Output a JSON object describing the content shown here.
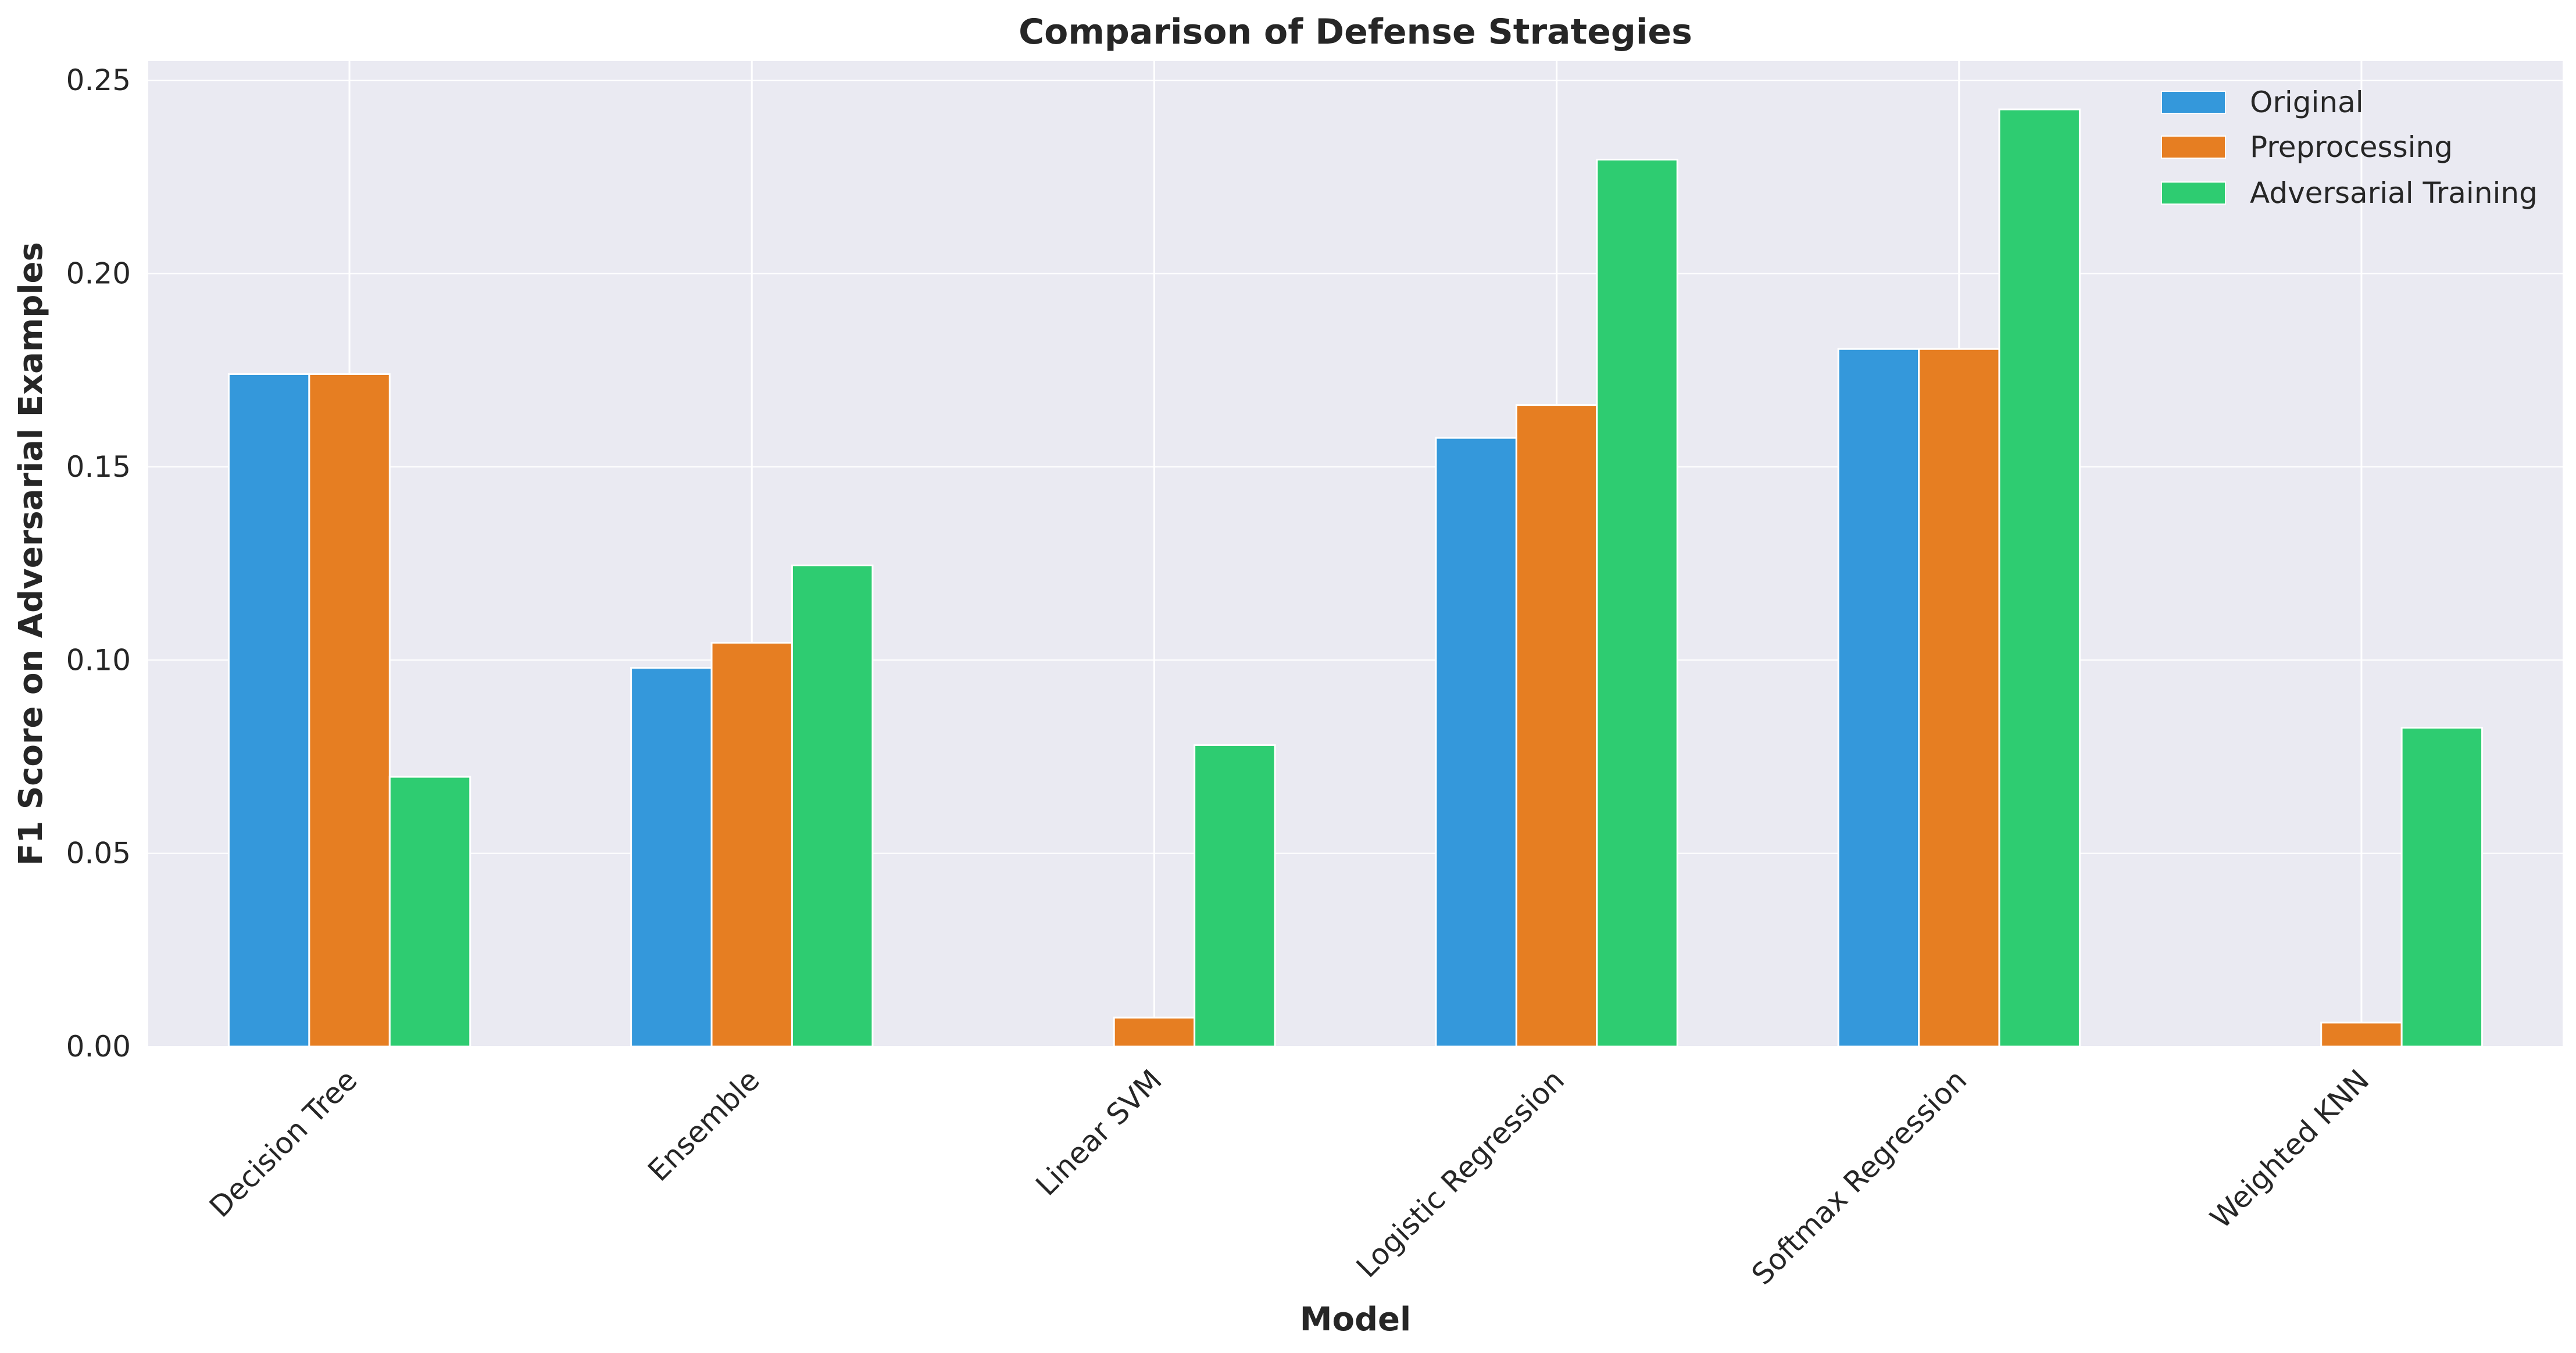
{
  "chart_data": {
    "type": "bar",
    "title": "Comparison of Defense Strategies",
    "xlabel": "Model",
    "ylabel": "F1 Score on Adversarial Examples",
    "categories": [
      "Decision Tree",
      "Ensemble",
      "Linear SVM",
      "Logistic Regression",
      "Softmax Regression",
      "Weighted KNN"
    ],
    "series": [
      {
        "name": "Original",
        "color": "#3498db",
        "values": [
          0.174,
          0.098,
          0.0,
          0.1575,
          0.1805,
          0.0
        ]
      },
      {
        "name": "Preprocessing",
        "color": "#e67e22",
        "values": [
          0.174,
          0.1045,
          0.0075,
          0.166,
          0.1805,
          0.0062
        ]
      },
      {
        "name": "Adversarial Training",
        "color": "#2ecc71",
        "values": [
          0.0698,
          0.1245,
          0.078,
          0.2295,
          0.2425,
          0.0825
        ]
      }
    ],
    "yticks": [
      "0.00",
      "0.05",
      "0.10",
      "0.15",
      "0.20",
      "0.25"
    ],
    "ylim": [
      0,
      0.255
    ],
    "grid": true,
    "legend_position": "top-right",
    "background_color": "#eaeaf2",
    "grid_color": "#ffffff"
  }
}
